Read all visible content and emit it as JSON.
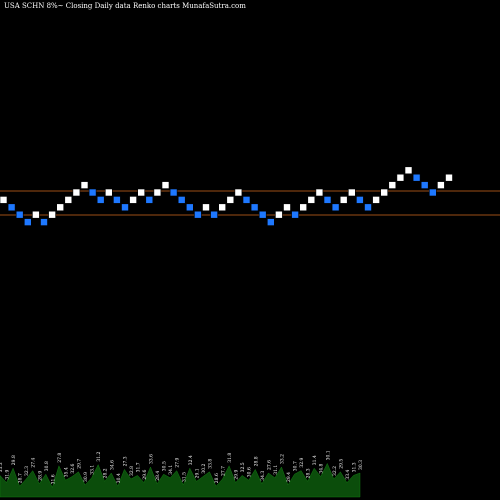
{
  "chart_data": {
    "type": "renko",
    "title": "USA SCHN  8%~  Closing Daily data  Renko  charts MunafaSutra.com",
    "colors": {
      "background": "#000000",
      "up": "#ffffff",
      "down": "#1e78ff",
      "line": "#d2691e",
      "volume": "#0b4d0b"
    },
    "reference_lines": [
      33.5,
      28.0
    ],
    "bricks": [
      {
        "dir": "up",
        "level": 5
      },
      {
        "dir": "down",
        "level": 4
      },
      {
        "dir": "down",
        "level": 3
      },
      {
        "dir": "down",
        "level": 2
      },
      {
        "dir": "up",
        "level": 3
      },
      {
        "dir": "down",
        "level": 2
      },
      {
        "dir": "up",
        "level": 3
      },
      {
        "dir": "up",
        "level": 4
      },
      {
        "dir": "up",
        "level": 5
      },
      {
        "dir": "up",
        "level": 6
      },
      {
        "dir": "up",
        "level": 7
      },
      {
        "dir": "down",
        "level": 6
      },
      {
        "dir": "down",
        "level": 5
      },
      {
        "dir": "up",
        "level": 6
      },
      {
        "dir": "down",
        "level": 5
      },
      {
        "dir": "down",
        "level": 4
      },
      {
        "dir": "up",
        "level": 5
      },
      {
        "dir": "up",
        "level": 6
      },
      {
        "dir": "down",
        "level": 5
      },
      {
        "dir": "up",
        "level": 6
      },
      {
        "dir": "up",
        "level": 7
      },
      {
        "dir": "down",
        "level": 6
      },
      {
        "dir": "down",
        "level": 5
      },
      {
        "dir": "down",
        "level": 4
      },
      {
        "dir": "down",
        "level": 3
      },
      {
        "dir": "up",
        "level": 4
      },
      {
        "dir": "down",
        "level": 3
      },
      {
        "dir": "up",
        "level": 4
      },
      {
        "dir": "up",
        "level": 5
      },
      {
        "dir": "up",
        "level": 6
      },
      {
        "dir": "down",
        "level": 5
      },
      {
        "dir": "down",
        "level": 4
      },
      {
        "dir": "down",
        "level": 3
      },
      {
        "dir": "down",
        "level": 2
      },
      {
        "dir": "up",
        "level": 3
      },
      {
        "dir": "up",
        "level": 4
      },
      {
        "dir": "down",
        "level": 3
      },
      {
        "dir": "up",
        "level": 4
      },
      {
        "dir": "up",
        "level": 5
      },
      {
        "dir": "up",
        "level": 6
      },
      {
        "dir": "down",
        "level": 5
      },
      {
        "dir": "down",
        "level": 4
      },
      {
        "dir": "up",
        "level": 5
      },
      {
        "dir": "up",
        "level": 6
      },
      {
        "dir": "down",
        "level": 5
      },
      {
        "dir": "down",
        "level": 4
      },
      {
        "dir": "up",
        "level": 5
      },
      {
        "dir": "up",
        "level": 6
      },
      {
        "dir": "up",
        "level": 7
      },
      {
        "dir": "up",
        "level": 8
      },
      {
        "dir": "up",
        "level": 9
      },
      {
        "dir": "down",
        "level": 8
      },
      {
        "dir": "down",
        "level": 7
      },
      {
        "dir": "down",
        "level": 6
      },
      {
        "dir": "up",
        "level": 7
      },
      {
        "dir": "up",
        "level": 8
      }
    ],
    "volume": [
      18,
      12,
      24,
      9,
      15,
      22,
      11,
      19,
      8,
      26,
      14,
      17,
      21,
      10,
      16,
      27,
      13,
      20,
      9,
      23,
      15,
      18,
      12,
      25,
      11,
      19,
      16,
      22,
      10,
      24,
      13,
      17,
      21,
      9,
      15,
      26,
      12,
      18,
      14,
      23,
      11,
      20,
      16,
      25,
      10,
      19,
      22,
      13,
      24,
      17,
      28,
      15,
      21,
      12,
      18,
      20
    ],
    "volume_labels": [
      "33.3",
      "31.9",
      "29.8",
      "28.7",
      "32.3",
      "27.4",
      "28.9",
      "30.8",
      "31.6",
      "27.8",
      "35.4",
      "32.6",
      "29.7",
      "30.9",
      "33.1",
      "31.2",
      "28.2",
      "34.6",
      "30.4",
      "27.3",
      "32.8",
      "31.7",
      "29.6",
      "33.6",
      "28.4",
      "30.5",
      "34.1",
      "27.9",
      "31.5",
      "32.4",
      "29.1",
      "30.2",
      "33.8",
      "28.6",
      "27.7",
      "31.8",
      "29.9",
      "32.5",
      "30.6",
      "28.8",
      "34.3",
      "27.6",
      "31.1",
      "33.2",
      "29.4",
      "30.7",
      "32.9",
      "28.3",
      "31.4",
      "34.8",
      "30.1",
      "32.2",
      "29.5",
      "33.4",
      "31.3",
      "30.3"
    ]
  }
}
